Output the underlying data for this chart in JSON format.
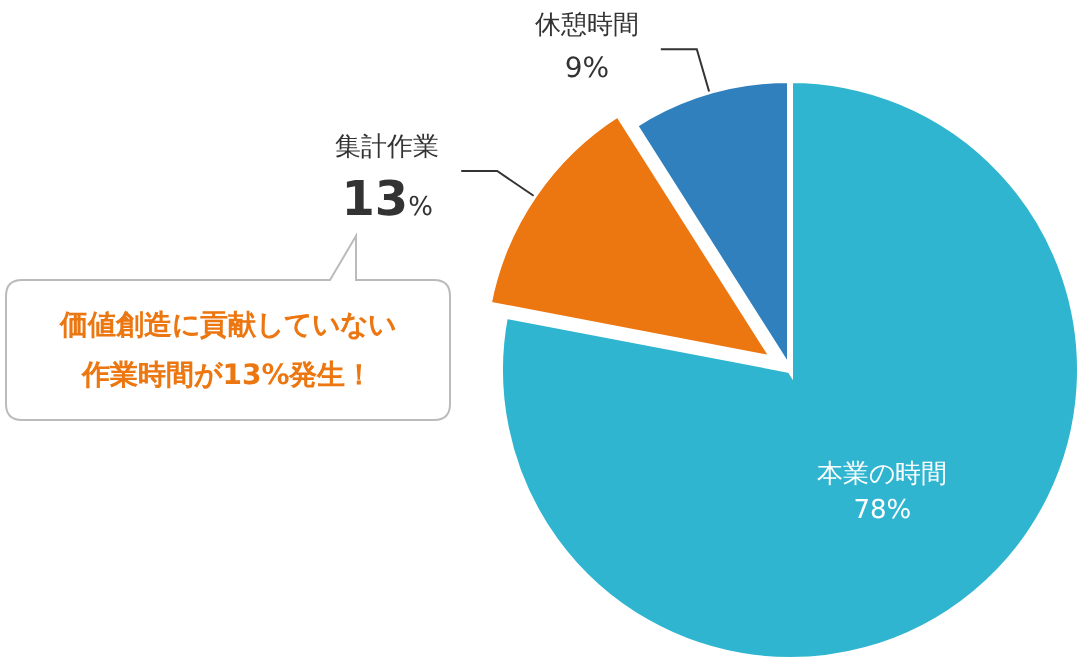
{
  "chart_data": {
    "type": "pie",
    "categories": [
      "本業の時間",
      "集計作業",
      "休憩時間"
    ],
    "values": [
      78,
      13,
      9
    ],
    "colors": [
      "#2fb5d0",
      "#ec760f",
      "#3180be"
    ],
    "value_labels": [
      "78%",
      "13%",
      "9%"
    ],
    "annotations": [
      "価値創造に貢献していない",
      "作業時間が13%発生！"
    ]
  }
}
